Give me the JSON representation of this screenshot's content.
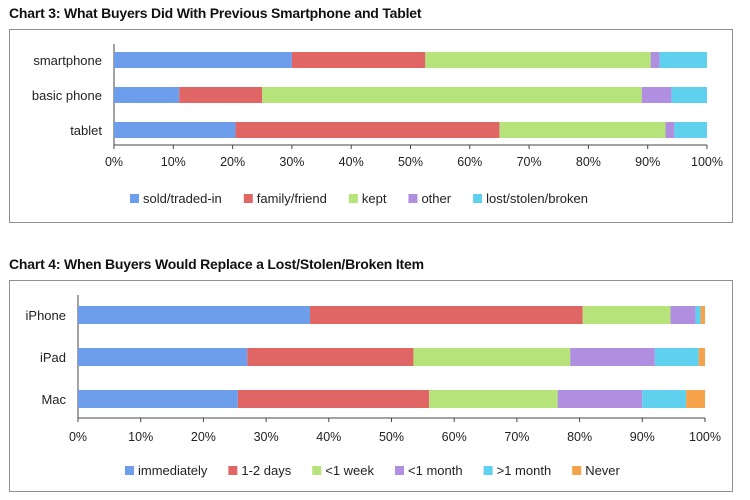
{
  "chart_data": [
    {
      "type": "bar",
      "orientation": "horizontal",
      "stacked": true,
      "title": "Chart 3: What Buyers Did With Previous Smartphone and Tablet",
      "categories": [
        "smartphone",
        "basic phone",
        "tablet"
      ],
      "xlim": [
        0,
        100
      ],
      "ticks": [
        "0%",
        "10%",
        "20%",
        "30%",
        "40%",
        "50%",
        "60%",
        "70%",
        "80%",
        "90%",
        "100%"
      ],
      "series": [
        {
          "name": "sold/traded-in",
          "color": "#6d9eeb",
          "values": [
            30,
            11,
            20.5
          ]
        },
        {
          "name": "family/friend",
          "color": "#e06666",
          "values": [
            22.5,
            14,
            44.5
          ]
        },
        {
          "name": "kept",
          "color": "#b6e37a",
          "values": [
            38,
            64,
            28
          ]
        },
        {
          "name": "other",
          "color": "#b08fe0",
          "values": [
            1.5,
            5,
            1.5
          ]
        },
        {
          "name": "lost/stolen/broken",
          "color": "#5fd0ee",
          "values": [
            8,
            6,
            5.5
          ]
        }
      ],
      "legend_position": "bottom"
    },
    {
      "type": "bar",
      "orientation": "horizontal",
      "stacked": true,
      "title": "Chart 4: When Buyers Would Replace a Lost/Stolen/Broken Item",
      "categories": [
        "iPhone",
        "iPad",
        "Mac"
      ],
      "xlim": [
        0,
        100
      ],
      "ticks": [
        "0%",
        "10%",
        "20%",
        "30%",
        "40%",
        "50%",
        "60%",
        "70%",
        "80%",
        "90%",
        "100%"
      ],
      "series": [
        {
          "name": "immediately",
          "color": "#6d9eeb",
          "values": [
            37,
            27,
            25.5
          ]
        },
        {
          "name": "1-2 days",
          "color": "#e06666",
          "values": [
            43.5,
            26.5,
            30.5
          ]
        },
        {
          "name": "<1 week",
          "color": "#b6e37a",
          "values": [
            14,
            25,
            20.5
          ]
        },
        {
          "name": "<1 month",
          "color": "#b08fe0",
          "values": [
            4,
            13.5,
            13.5
          ]
        },
        {
          "name": ">1 month",
          "color": "#5fd0ee",
          "values": [
            0.8,
            7,
            7
          ]
        },
        {
          "name": "Never",
          "color": "#f6a24b",
          "values": [
            0.7,
            1,
            3
          ]
        }
      ],
      "legend_position": "bottom"
    }
  ]
}
